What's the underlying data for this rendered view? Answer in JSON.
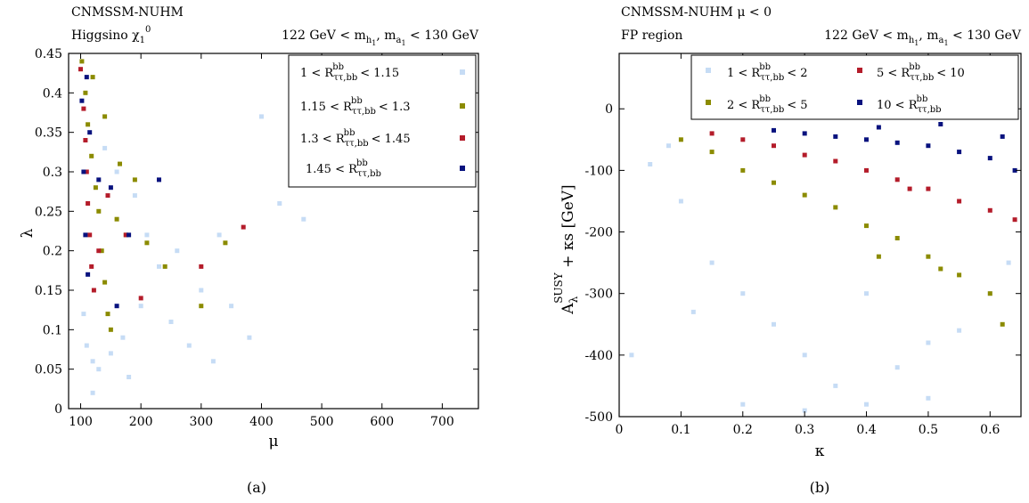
{
  "caption_a": "(a)",
  "caption_b": "(b)",
  "colors": {
    "light_blue": "#c6dcf5",
    "olive": "#8b8b00",
    "red": "#b41c2a",
    "navy": "#08127e"
  },
  "chart_data": [
    {
      "type": "scatter",
      "header_title": "CNMSSM-NUHM",
      "header_sub": "Higgsino χ₁⁰",
      "header_right": "122 GeV < m_h1, m_a1 < 130 GeV",
      "xlabel": "μ",
      "ylabel": "λ",
      "xlim": [
        80,
        760
      ],
      "ylim": [
        0,
        0.45
      ],
      "xticks": [
        "100",
        "200",
        "300",
        "400",
        "500",
        "600",
        "700"
      ],
      "yticks": [
        "0",
        "0.05",
        "0.1",
        "0.15",
        "0.2",
        "0.25",
        "0.3",
        "0.35",
        "0.4",
        "0.45"
      ],
      "grid": false,
      "legend_position": "top-right",
      "series": [
        {
          "name": "1 < R^bb_ττ,bb < 1.15",
          "color": "#c6dcf5",
          "points": [
            [
              105,
              0.12
            ],
            [
              110,
              0.08
            ],
            [
              120,
              0.06
            ],
            [
              130,
              0.05
            ],
            [
              150,
              0.07
            ],
            [
              170,
              0.09
            ],
            [
              200,
              0.13
            ],
            [
              230,
              0.18
            ],
            [
              260,
              0.2
            ],
            [
              300,
              0.15
            ],
            [
              350,
              0.13
            ],
            [
              400,
              0.37
            ],
            [
              430,
              0.26
            ],
            [
              470,
              0.24
            ],
            [
              140,
              0.33
            ],
            [
              160,
              0.3
            ],
            [
              190,
              0.27
            ],
            [
              210,
              0.22
            ],
            [
              250,
              0.11
            ],
            [
              320,
              0.06
            ],
            [
              380,
              0.09
            ],
            [
              120,
              0.02
            ],
            [
              180,
              0.04
            ],
            [
              280,
              0.08
            ],
            [
              330,
              0.22
            ]
          ]
        },
        {
          "name": "1.15 < R^bb_ττ,bb < 1.3",
          "color": "#8b8b00",
          "points": [
            [
              102,
              0.44
            ],
            [
              108,
              0.4
            ],
            [
              112,
              0.36
            ],
            [
              118,
              0.32
            ],
            [
              125,
              0.28
            ],
            [
              130,
              0.25
            ],
            [
              135,
              0.2
            ],
            [
              140,
              0.16
            ],
            [
              145,
              0.12
            ],
            [
              150,
              0.1
            ],
            [
              160,
              0.24
            ],
            [
              175,
              0.22
            ],
            [
              190,
              0.29
            ],
            [
              210,
              0.21
            ],
            [
              240,
              0.18
            ],
            [
              300,
              0.13
            ],
            [
              340,
              0.21
            ],
            [
              120,
              0.42
            ],
            [
              140,
              0.37
            ],
            [
              165,
              0.31
            ]
          ]
        },
        {
          "name": "1.3 < R^bb_ττ,bb < 1.45",
          "color": "#b41c2a",
          "points": [
            [
              100,
              0.43
            ],
            [
              105,
              0.38
            ],
            [
              108,
              0.34
            ],
            [
              110,
              0.3
            ],
            [
              112,
              0.26
            ],
            [
              115,
              0.22
            ],
            [
              118,
              0.18
            ],
            [
              122,
              0.15
            ],
            [
              130,
              0.2
            ],
            [
              145,
              0.27
            ],
            [
              175,
              0.22
            ],
            [
              200,
              0.14
            ],
            [
              300,
              0.18
            ],
            [
              370,
              0.23
            ]
          ]
        },
        {
          "name": "1.45 < R^bb_ττ,bb",
          "color": "#08127e",
          "points": [
            [
              102,
              0.39
            ],
            [
              105,
              0.3
            ],
            [
              108,
              0.22
            ],
            [
              112,
              0.17
            ],
            [
              115,
              0.35
            ],
            [
              130,
              0.29
            ],
            [
              150,
              0.28
            ],
            [
              180,
              0.22
            ],
            [
              160,
              0.13
            ],
            [
              230,
              0.29
            ],
            [
              110,
              0.42
            ]
          ]
        }
      ]
    },
    {
      "type": "scatter",
      "header_title": "CNMSSM-NUHM  μ < 0",
      "header_sub": "FP region",
      "header_right": "122 GeV < m_h1, m_a1 < 130 GeV",
      "xlabel": "κ",
      "ylabel": "A_λ^SUSY + κs  [GeV]",
      "xlim": [
        0,
        0.65
      ],
      "ylim": [
        -500,
        90
      ],
      "xticks": [
        "0",
        "0.1",
        "0.2",
        "0.3",
        "0.4",
        "0.5",
        "0.6"
      ],
      "yticks": [
        "-500",
        "-400",
        "-300",
        "-200",
        "-100",
        "0"
      ],
      "grid": false,
      "legend_position": "top",
      "series": [
        {
          "name": "1 < R^bb_ττ,bb < 2",
          "color": "#c6dcf5",
          "points": [
            [
              0.02,
              -400
            ],
            [
              0.05,
              -90
            ],
            [
              0.08,
              -60
            ],
            [
              0.1,
              -150
            ],
            [
              0.15,
              -250
            ],
            [
              0.2,
              -300
            ],
            [
              0.25,
              -350
            ],
            [
              0.3,
              -400
            ],
            [
              0.35,
              -450
            ],
            [
              0.4,
              -480
            ],
            [
              0.45,
              -420
            ],
            [
              0.5,
              -380
            ],
            [
              0.55,
              -360
            ],
            [
              0.6,
              -300
            ],
            [
              0.63,
              -250
            ],
            [
              0.2,
              -480
            ],
            [
              0.3,
              -490
            ],
            [
              0.5,
              -470
            ],
            [
              0.12,
              -330
            ],
            [
              0.4,
              -300
            ]
          ]
        },
        {
          "name": "2 < R^bb_ττ,bb < 5",
          "color": "#8b8b00",
          "points": [
            [
              0.1,
              -50
            ],
            [
              0.15,
              -70
            ],
            [
              0.2,
              -100
            ],
            [
              0.25,
              -120
            ],
            [
              0.3,
              -140
            ],
            [
              0.35,
              -160
            ],
            [
              0.4,
              -190
            ],
            [
              0.45,
              -210
            ],
            [
              0.5,
              -240
            ],
            [
              0.55,
              -270
            ],
            [
              0.6,
              -300
            ],
            [
              0.62,
              -350
            ],
            [
              0.42,
              -240
            ],
            [
              0.52,
              -260
            ]
          ]
        },
        {
          "name": "5 < R^bb_ττ,bb < 10",
          "color": "#b41c2a",
          "points": [
            [
              0.15,
              -40
            ],
            [
              0.2,
              -50
            ],
            [
              0.25,
              -60
            ],
            [
              0.3,
              -75
            ],
            [
              0.35,
              -85
            ],
            [
              0.4,
              -100
            ],
            [
              0.45,
              -115
            ],
            [
              0.5,
              -130
            ],
            [
              0.55,
              -150
            ],
            [
              0.6,
              -165
            ],
            [
              0.64,
              -180
            ],
            [
              0.47,
              -130
            ]
          ]
        },
        {
          "name": "10 < R^bb_ττ,bb",
          "color": "#08127e",
          "points": [
            [
              0.25,
              -35
            ],
            [
              0.3,
              -40
            ],
            [
              0.35,
              -45
            ],
            [
              0.4,
              -50
            ],
            [
              0.45,
              -55
            ],
            [
              0.5,
              -60
            ],
            [
              0.55,
              -70
            ],
            [
              0.6,
              -80
            ],
            [
              0.64,
              -100
            ],
            [
              0.42,
              -30
            ],
            [
              0.52,
              -25
            ],
            [
              0.62,
              -45
            ]
          ]
        }
      ]
    }
  ]
}
